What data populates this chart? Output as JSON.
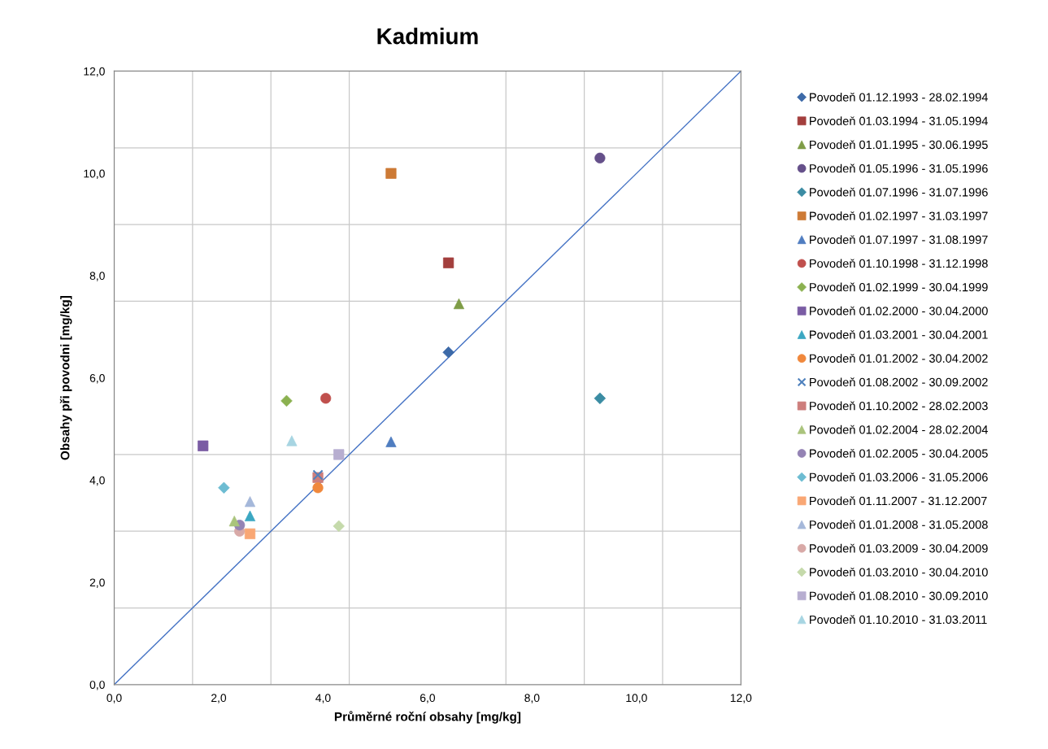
{
  "chart_data": {
    "type": "scatter",
    "title": "Kadmium",
    "xlabel": "Průměrné roční obsahy [mg/kg]",
    "ylabel": "Obsahy při povodni [mg/kg]",
    "xlim": [
      0,
      12
    ],
    "ylim": [
      0,
      12
    ],
    "xticks": [
      {
        "value": 0,
        "label": "0,0"
      },
      {
        "value": 1.5,
        "label": null
      },
      {
        "value": 2,
        "label": "2,0"
      },
      {
        "value": 3,
        "label": null
      },
      {
        "value": 4,
        "label": "4,0"
      },
      {
        "value": 4.5,
        "label": null
      },
      {
        "value": 6,
        "label": "6,0"
      },
      {
        "value": 7.5,
        "label": null
      },
      {
        "value": 8,
        "label": "8,0"
      },
      {
        "value": 9,
        "label": null
      },
      {
        "value": 10,
        "label": "10,0"
      },
      {
        "value": 10.5,
        "label": null
      },
      {
        "value": 12,
        "label": "12,0"
      }
    ],
    "yticks": [
      {
        "value": 0,
        "label": "0,0"
      },
      {
        "value": 1.5,
        "label": null
      },
      {
        "value": 2,
        "label": "2,0"
      },
      {
        "value": 3,
        "label": null
      },
      {
        "value": 4,
        "label": "4,0"
      },
      {
        "value": 4.5,
        "label": null
      },
      {
        "value": 6,
        "label": "6,0"
      },
      {
        "value": 7.5,
        "label": null
      },
      {
        "value": 8,
        "label": "8,0"
      },
      {
        "value": 9,
        "label": null
      },
      {
        "value": 10,
        "label": "10,0"
      },
      {
        "value": 10.5,
        "label": null
      },
      {
        "value": 12,
        "label": "12,0"
      }
    ],
    "grid": true,
    "legend": "right",
    "series": [
      {
        "name": "Povodeň 01.12.1993 - 28.02.1994",
        "color": "#3d6aa8",
        "marker": "diamond",
        "x": [
          6.4
        ],
        "values": [
          6.5
        ]
      },
      {
        "name": "Povodeň 01.03.1994 - 31.05.1994",
        "color": "#a33f3d",
        "marker": "square",
        "x": [
          6.4
        ],
        "values": [
          8.25
        ]
      },
      {
        "name": "Povodeň 01.01.1995 - 30.06.1995",
        "color": "#7e9c46",
        "marker": "triangle",
        "x": [
          6.6
        ],
        "values": [
          7.45
        ]
      },
      {
        "name": "Povodeň 01.05.1996 - 31.05.1996",
        "color": "#65508a",
        "marker": "circle",
        "x": [
          9.3
        ],
        "values": [
          10.3
        ]
      },
      {
        "name": "Povodeň 01.07.1996 - 31.07.1996",
        "color": "#3b8ca3",
        "marker": "diamond",
        "x": [
          9.3
        ],
        "values": [
          5.6
        ]
      },
      {
        "name": "Povodeň 01.02.1997 - 31.03.1997",
        "color": "#cd7a35",
        "marker": "square",
        "x": [
          5.3
        ],
        "values": [
          10.0
        ]
      },
      {
        "name": "Povodeň 01.07.1997 - 31.08.1997",
        "color": "#4f7dc0",
        "marker": "triangle",
        "x": [
          5.3
        ],
        "values": [
          4.75
        ]
      },
      {
        "name": "Povodeň 01.10.1998 - 31.12.1998",
        "color": "#c0504d",
        "marker": "circle",
        "x": [
          4.05
        ],
        "values": [
          5.6
        ]
      },
      {
        "name": "Povodeň 01.02.1999 - 30.04.1999",
        "color": "#8bb150",
        "marker": "diamond",
        "x": [
          3.3
        ],
        "values": [
          5.55
        ]
      },
      {
        "name": "Povodeň 01.02.2000 - 30.04.2000",
        "color": "#7a5ca4",
        "marker": "square",
        "x": [
          1.7
        ],
        "values": [
          4.67
        ]
      },
      {
        "name": "Povodeň 01.03.2001 - 30.04.2001",
        "color": "#3ba7c2",
        "marker": "triangle",
        "x": [
          2.6
        ],
        "values": [
          3.3
        ]
      },
      {
        "name": "Povodeň 01.01.2002 - 30.04.2002",
        "color": "#f0883c",
        "marker": "circle",
        "x": [
          3.9
        ],
        "values": [
          3.85
        ]
      },
      {
        "name": "Povodeň 01.08.2002 - 30.09.2002",
        "color": "#4f81bd",
        "marker": "cross",
        "x": [
          3.9
        ],
        "values": [
          4.1
        ]
      },
      {
        "name": "Povodeň 01.10.2002 - 28.02.2003",
        "color": "#cd7e7c",
        "marker": "square",
        "x": [
          3.9
        ],
        "values": [
          4.05
        ]
      },
      {
        "name": "Povodeň 01.02.2004 - 28.02.2004",
        "color": "#aac47c",
        "marker": "triangle",
        "x": [
          2.3
        ],
        "values": [
          3.2
        ]
      },
      {
        "name": "Povodeň 01.02.2005 - 30.04.2005",
        "color": "#9483b4",
        "marker": "circle",
        "x": [
          2.4
        ],
        "values": [
          3.12
        ]
      },
      {
        "name": "Povodeň 01.03.2006 - 31.05.2006",
        "color": "#6dbcd2",
        "marker": "diamond",
        "x": [
          2.1
        ],
        "values": [
          3.85
        ]
      },
      {
        "name": "Povodeň 01.11.2007 - 31.12.2007",
        "color": "#f9a774",
        "marker": "square",
        "x": [
          2.6
        ],
        "values": [
          2.95
        ]
      },
      {
        "name": "Povodeň 01.01.2008 - 31.05.2008",
        "color": "#a5b8da",
        "marker": "triangle",
        "x": [
          2.6
        ],
        "values": [
          3.58
        ]
      },
      {
        "name": "Povodeň 01.03.2009 - 30.04.2009",
        "color": "#d8a9a7",
        "marker": "circle",
        "x": [
          2.4
        ],
        "values": [
          3.0
        ]
      },
      {
        "name": "Povodeň 01.03.2010 - 30.04.2010",
        "color": "#c5daab",
        "marker": "diamond",
        "x": [
          4.3
        ],
        "values": [
          3.1
        ]
      },
      {
        "name": "Povodeň 01.08.2010 - 30.09.2010",
        "color": "#b7aed0",
        "marker": "square",
        "x": [
          4.3
        ],
        "values": [
          4.5
        ]
      },
      {
        "name": "Povodeň 01.10.2010 - 31.03.2011",
        "color": "#a7d5e2",
        "marker": "triangle",
        "x": [
          3.4
        ],
        "values": [
          4.77
        ]
      },
      {
        "type": "line",
        "color": "#4472c4",
        "marker": "none",
        "x": [
          0,
          12
        ],
        "values": [
          0,
          12
        ]
      }
    ]
  }
}
